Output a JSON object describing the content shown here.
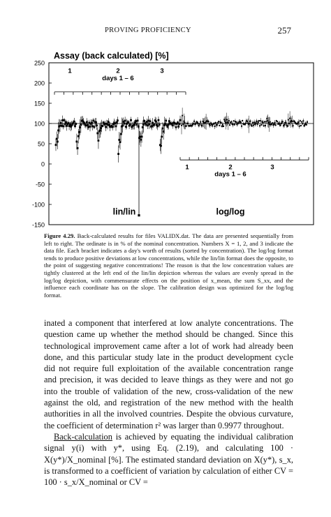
{
  "header": {
    "running_title": "PROVING PROFICIENCY",
    "page_number": "257"
  },
  "chart_data": {
    "type": "scatter",
    "title": "Assay (back calculated) [%]",
    "ylabel": "",
    "xlabel": "",
    "ylim": [
      -150,
      250
    ],
    "yticks": [
      "250",
      "200",
      "150",
      "100",
      "50",
      "0",
      "-50",
      "-100",
      "-150"
    ],
    "grid": false,
    "reference_line": 100,
    "panels": [
      {
        "name": "lin/lin",
        "file_labels": [
          "1",
          "2",
          "3"
        ],
        "days_label": "days 1 – 6"
      },
      {
        "name": "log/log",
        "file_labels": [
          "1",
          "2",
          "3"
        ],
        "days_label": "days 1 – 6"
      }
    ]
  },
  "caption": {
    "label": "Figure 4.29.",
    "text": "Back-calculated results for files VALIDX.dat. The data are presented sequentially from left to right. The ordinate is in % of the nominal concentration. Numbers X = 1, 2, and 3 indicate the data file. Each bracket indicates a day's worth of results (sorted by concentration). The log/log format tends to produce positive deviations at low concentrations, while the lin/lin format does the opposite, to the point of suggesting negative concentrations! The reason is that the low concentration values are tightly clustered at the left end of the lin/lin depiction whereas the values are evenly spread in the log/log depiction, with commensurate effects on the position of x_mean, the sum S_xx, and the influence each coordinate has on the slope. The calibration design was optimized for the log/log format."
  },
  "body": {
    "p1": "inated a component that interfered at low analyte concentrations. The question came up whether the method should be changed. Since this technological improvement came after a lot of work had already been done, and this particular study late in the product development cycle did not require full exploitation of the available concentration range and precision, it was decided to leave things as they were and not go into the trouble of validation of the new, cross-validation of the new against the old, and registration of the new method with the health authorities in all the involved countries. Despite the obvious curvature, the coefficient of determination r² was larger than 0.9977 throughout.",
    "p2_lead": "Back-calculation",
    "p2_rest": " is achieved by equating the individual calibration signal y(i) with y*, using Eq. (2.19), and calculating 100 · X(y*)/X_nominal [%]. The estimated standard deviation on X(y*), s_x, is transformed to a coefficient of variation by calculation of either CV = 100 · s_x/X_nominal or CV ="
  }
}
